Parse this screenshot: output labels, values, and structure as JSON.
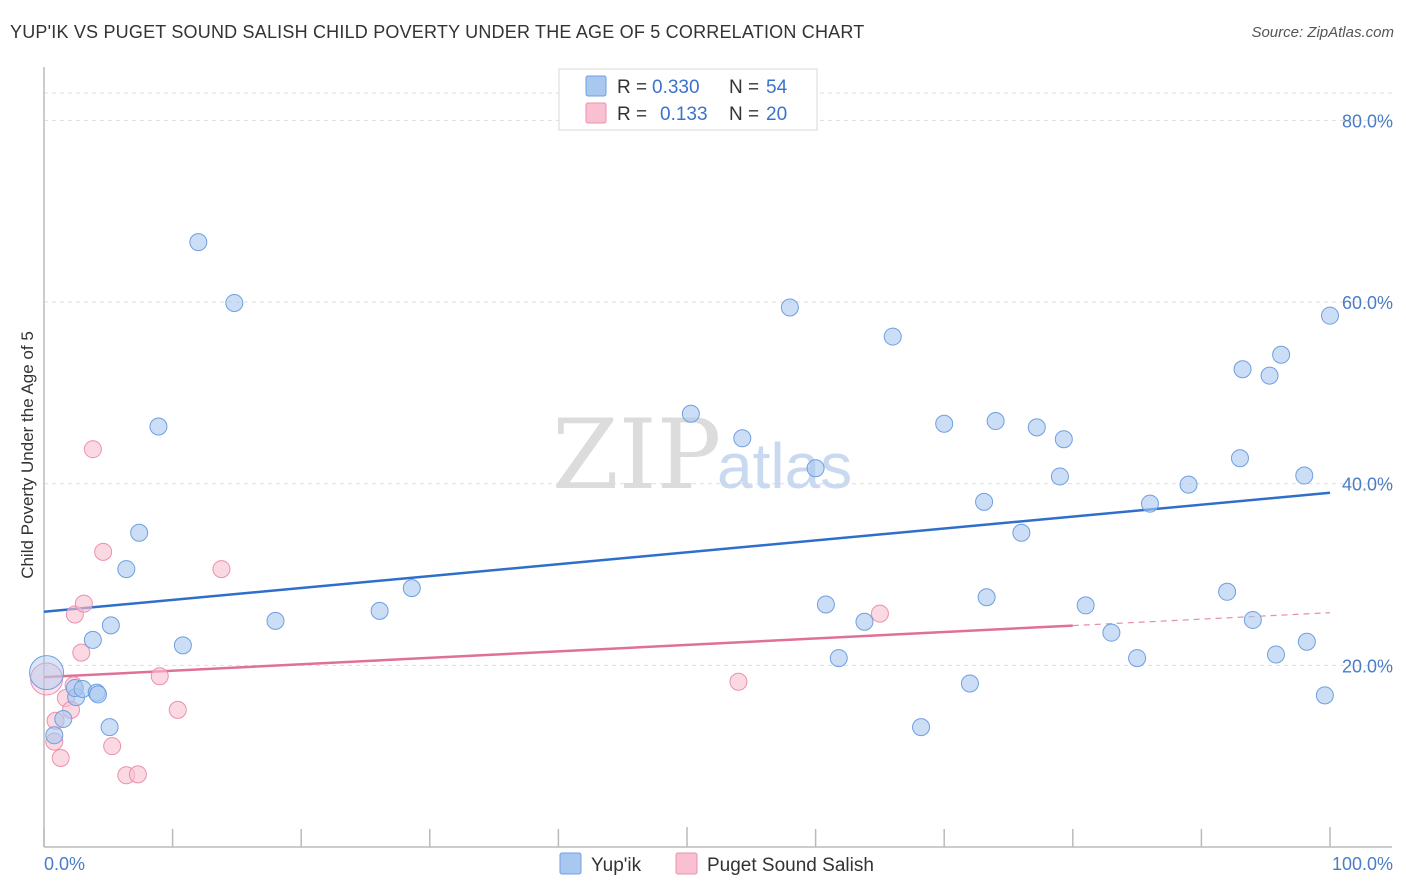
{
  "title": "YUP'IK VS PUGET SOUND SALISH CHILD POVERTY UNDER THE AGE OF 5 CORRELATION CHART",
  "source": "Source: ZipAtlas.com",
  "watermark": {
    "zip": "ZIP",
    "atlas": "atlas"
  },
  "legend": {
    "r_label": "R =",
    "n_label": "N =",
    "rows": [
      {
        "r": "0.330",
        "n": "54"
      },
      {
        "r": "0.133",
        "n": "20"
      }
    ]
  },
  "chart_data": {
    "type": "scatter",
    "ylabel": "Child Poverty Under the Age of 5",
    "xlabel": "",
    "xlim": [
      0,
      100
    ],
    "ylim": [
      0,
      85
    ],
    "x_tick_labels": [
      "0.0%",
      "100.0%"
    ],
    "y_ticks": [
      20,
      40,
      60,
      80
    ],
    "y_tick_labels": [
      "20.0%",
      "40.0%",
      "60.0%",
      "80.0%"
    ],
    "grid": true,
    "legend_position": "top-center",
    "series": [
      {
        "name": "Yup'ik",
        "color": "#a8c8f0",
        "stroke": "#6f9fe0",
        "trend": {
          "x": [
            0,
            100
          ],
          "y": [
            25.9,
            39.0
          ],
          "solid_to": 100
        },
        "points": [
          [
            0.2,
            19.2
          ],
          [
            0.8,
            12.3
          ],
          [
            1.5,
            14.1
          ],
          [
            2.5,
            16.5
          ],
          [
            2.4,
            17.5
          ],
          [
            3.0,
            17.4
          ],
          [
            4.1,
            17.0
          ],
          [
            4.2,
            16.8
          ],
          [
            3.8,
            22.8
          ],
          [
            5.1,
            13.2
          ],
          [
            5.2,
            24.4
          ],
          [
            6.4,
            30.6
          ],
          [
            7.4,
            34.6
          ],
          [
            8.9,
            46.3
          ],
          [
            10.8,
            22.2
          ],
          [
            12.0,
            66.6
          ],
          [
            14.8,
            59.9
          ],
          [
            18.0,
            24.9
          ],
          [
            26.1,
            26.0
          ],
          [
            28.6,
            28.5
          ],
          [
            50.3,
            47.7
          ],
          [
            54.3,
            45.0
          ],
          [
            58.0,
            59.4
          ],
          [
            60.0,
            41.7
          ],
          [
            60.8,
            26.7
          ],
          [
            61.8,
            20.8
          ],
          [
            63.8,
            24.8
          ],
          [
            66.0,
            56.2
          ],
          [
            68.2,
            13.2
          ],
          [
            70.0,
            46.6
          ],
          [
            72.0,
            18.0
          ],
          [
            73.1,
            38.0
          ],
          [
            73.3,
            27.5
          ],
          [
            74.0,
            46.9
          ],
          [
            76.0,
            34.6
          ],
          [
            77.2,
            46.2
          ],
          [
            79.0,
            40.8
          ],
          [
            79.3,
            44.9
          ],
          [
            81.0,
            26.6
          ],
          [
            83.0,
            23.6
          ],
          [
            85.0,
            20.8
          ],
          [
            86.0,
            37.8
          ],
          [
            89.0,
            39.9
          ],
          [
            92.0,
            28.1
          ],
          [
            93.0,
            42.8
          ],
          [
            93.2,
            52.6
          ],
          [
            94.0,
            25.0
          ],
          [
            95.3,
            51.9
          ],
          [
            95.8,
            21.2
          ],
          [
            96.2,
            54.2
          ],
          [
            98.0,
            40.9
          ],
          [
            98.2,
            22.6
          ],
          [
            99.6,
            16.7
          ],
          [
            100.0,
            58.5
          ]
        ]
      },
      {
        "name": "Puget Sound Salish",
        "color": "#f8c0d0",
        "stroke": "#ec90ac",
        "trend": {
          "x": [
            0,
            100
          ],
          "y": [
            18.7,
            25.8
          ],
          "solid_to": 80
        },
        "points": [
          [
            0.2,
            18.5
          ],
          [
            0.8,
            11.6
          ],
          [
            0.9,
            13.9
          ],
          [
            1.3,
            9.8
          ],
          [
            1.7,
            16.4
          ],
          [
            2.1,
            15.1
          ],
          [
            2.3,
            17.8
          ],
          [
            2.4,
            25.6
          ],
          [
            2.9,
            21.4
          ],
          [
            3.1,
            26.8
          ],
          [
            3.8,
            43.8
          ],
          [
            4.6,
            32.5
          ],
          [
            5.3,
            11.1
          ],
          [
            6.4,
            7.9
          ],
          [
            7.3,
            8.0
          ],
          [
            9.0,
            18.8
          ],
          [
            10.4,
            15.1
          ],
          [
            13.8,
            30.6
          ],
          [
            54.0,
            18.2
          ],
          [
            65.0,
            25.7
          ]
        ]
      }
    ]
  }
}
